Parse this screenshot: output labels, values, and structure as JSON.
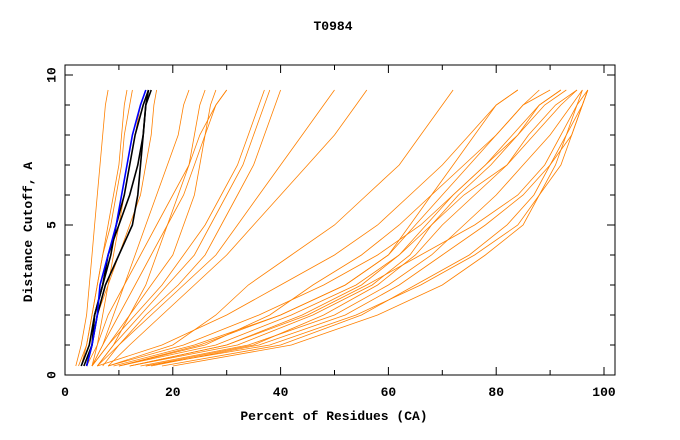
{
  "chart_data": {
    "type": "line",
    "title": "T0984",
    "xlabel": "Percent of Residues (CA)",
    "ylabel": "Distance Cutoff, A",
    "xlim": [
      0,
      100
    ],
    "ylim": [
      0,
      10
    ],
    "xticks": [
      "0",
      "20",
      "40",
      "60",
      "80",
      "100"
    ],
    "yticks": [
      "0",
      "5",
      "10"
    ],
    "grid": false,
    "legend": "none",
    "colors": {
      "default": "#ff8000",
      "black": "#000000",
      "blue": "#0000ff"
    },
    "cutoffs": [
      0.3,
      1,
      2,
      3,
      4,
      5,
      6,
      7,
      8,
      9,
      9.5
    ],
    "series": [
      {
        "color": "default",
        "x": [
          2,
          3,
          4,
          4.5,
          5,
          5.5,
          6,
          6.5,
          7,
          7.5,
          8
        ]
      },
      {
        "color": "default",
        "x": [
          2.5,
          4,
          5,
          6,
          7,
          8,
          9,
          10,
          10.5,
          11,
          11.5
        ]
      },
      {
        "color": "default",
        "x": [
          3,
          4,
          5,
          6,
          7,
          8.5,
          9.5,
          10.5,
          11,
          12,
          12.5
        ]
      },
      {
        "color": "default",
        "x": [
          5,
          6,
          7,
          8,
          9,
          10,
          11,
          12,
          13,
          14,
          15
        ]
      },
      {
        "color": "default",
        "x": [
          4,
          5,
          6,
          8,
          10,
          12,
          14,
          15,
          16,
          16.5,
          17
        ]
      },
      {
        "color": "default",
        "x": [
          5,
          7,
          10,
          13,
          16,
          19,
          22,
          24,
          26,
          28,
          30
        ]
      },
      {
        "color": "default",
        "x": [
          5,
          8,
          12,
          16,
          20,
          22,
          24,
          25,
          26,
          27,
          28
        ]
      },
      {
        "color": "default",
        "x": [
          6,
          9,
          14,
          19,
          24,
          27,
          30,
          33,
          35,
          37,
          38
        ]
      },
      {
        "color": "default",
        "x": [
          5,
          8,
          13,
          18,
          22,
          26,
          29,
          32,
          34,
          36,
          37
        ]
      },
      {
        "color": "default",
        "x": [
          7,
          10,
          15,
          21,
          26,
          29,
          32,
          35,
          37,
          39,
          40
        ]
      },
      {
        "color": "default",
        "x": [
          6,
          10,
          16,
          22,
          28,
          32,
          36,
          40,
          44,
          48,
          50
        ]
      },
      {
        "color": "default",
        "x": [
          8,
          12,
          18,
          24,
          30,
          35,
          40,
          45,
          50,
          54,
          56
        ]
      },
      {
        "color": "default",
        "x": [
          5,
          7,
          9,
          11,
          13,
          15,
          17,
          19,
          21,
          22,
          23
        ]
      },
      {
        "color": "default",
        "x": [
          6,
          9,
          12,
          15,
          17,
          19,
          21,
          23,
          24,
          25,
          26
        ]
      },
      {
        "color": "default",
        "x": [
          4,
          6,
          8,
          11,
          14,
          17,
          20,
          23,
          25,
          28,
          30
        ]
      },
      {
        "color": "default",
        "x": [
          10,
          25,
          40,
          52,
          60,
          65,
          70,
          75,
          80,
          85,
          88
        ]
      },
      {
        "color": "default",
        "x": [
          12,
          30,
          44,
          55,
          62,
          67,
          72,
          78,
          83,
          88,
          92
        ]
      },
      {
        "color": "default",
        "x": [
          15,
          35,
          48,
          58,
          65,
          70,
          76,
          82,
          87,
          92,
          95
        ]
      },
      {
        "color": "default",
        "x": [
          12,
          32,
          46,
          57,
          64,
          68,
          73,
          79,
          84,
          89,
          93
        ]
      },
      {
        "color": "default",
        "x": [
          18,
          40,
          55,
          65,
          75,
          82,
          87,
          90,
          93,
          95,
          96
        ]
      },
      {
        "color": "default",
        "x": [
          20,
          42,
          58,
          70,
          78,
          85,
          88,
          91,
          93,
          96,
          97
        ]
      },
      {
        "color": "default",
        "x": [
          15,
          38,
          54,
          66,
          76,
          84,
          88,
          92,
          94,
          96,
          97
        ]
      },
      {
        "color": "default",
        "x": [
          10,
          28,
          42,
          54,
          62,
          68,
          74,
          82,
          86,
          91,
          95
        ]
      },
      {
        "color": "default",
        "x": [
          8,
          22,
          36,
          48,
          58,
          66,
          72,
          78,
          84,
          88,
          92
        ]
      },
      {
        "color": "default",
        "x": [
          14,
          34,
          50,
          60,
          68,
          74,
          80,
          85,
          90,
          94,
          96
        ]
      },
      {
        "color": "default",
        "x": [
          10,
          26,
          38,
          46,
          55,
          62,
          68,
          74,
          80,
          85,
          90
        ]
      },
      {
        "color": "default",
        "x": [
          6,
          18,
          30,
          40,
          50,
          58,
          64,
          70,
          75,
          80,
          84
        ]
      },
      {
        "color": "default",
        "x": [
          8,
          20,
          28,
          34,
          42,
          50,
          56,
          62,
          66,
          70,
          72
        ]
      },
      {
        "color": "default",
        "x": [
          12,
          30,
          45,
          56,
          66,
          76,
          84,
          89,
          92,
          95,
          97
        ]
      },
      {
        "color": "default",
        "x": [
          9,
          24,
          40,
          52,
          60,
          64,
          68,
          72,
          76,
          80,
          84
        ]
      },
      {
        "color": "default",
        "x": [
          16,
          36,
          52,
          62,
          70,
          78,
          85,
          90,
          94,
          96,
          97
        ]
      },
      {
        "color": "black",
        "x": [
          3.5,
          5,
          5.5,
          7,
          8.5,
          9.5,
          11,
          12,
          13,
          14.5,
          15.5
        ]
      },
      {
        "color": "black",
        "x": [
          3,
          4.5,
          5.5,
          7,
          8,
          10,
          12,
          13.5,
          14.5,
          15,
          15.5
        ]
      },
      {
        "color": "black",
        "x": [
          4,
          5,
          6,
          7.5,
          10,
          12.5,
          13.5,
          14,
          14.5,
          15,
          16
        ]
      },
      {
        "color": "blue",
        "x": [
          4,
          5,
          6,
          6.5,
          8,
          9.5,
          10.5,
          11.5,
          12.5,
          14,
          15
        ]
      }
    ]
  }
}
